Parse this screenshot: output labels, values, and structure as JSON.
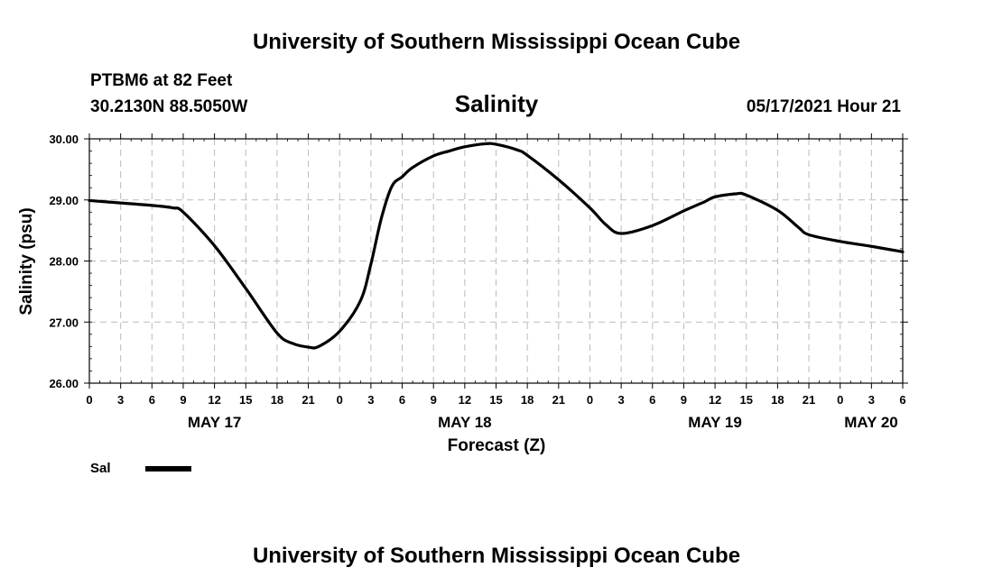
{
  "header": {
    "org_title": "University of Southern Mississippi Ocean Cube",
    "station": "PTBM6 at 82 Feet",
    "coords": "30.2130N  88.5050W",
    "timestamp": "05/17/2021 Hour 21",
    "footer_title": "University of Southern Mississippi Ocean Cube"
  },
  "colors": {
    "line": "#000000",
    "grid": "#bbbbbb"
  },
  "chart_data": {
    "type": "line",
    "title": "Salinity",
    "xlabel": "Forecast (Z)",
    "ylabel": "Salinity (psu)",
    "ylim": [
      26,
      30
    ],
    "xlim": [
      0,
      78
    ],
    "grid": true,
    "y_ticks": [
      "26.00",
      "27.00",
      "28.00",
      "29.00",
      "30.00"
    ],
    "x_ticks": [
      "0",
      "3",
      "6",
      "9",
      "12",
      "15",
      "18",
      "21",
      "0",
      "3",
      "6",
      "9",
      "12",
      "15",
      "18",
      "21",
      "0",
      "3",
      "6",
      "9",
      "12",
      "15",
      "18",
      "21",
      "0",
      "3",
      "6"
    ],
    "day_labels": [
      {
        "label": "MAY 17",
        "hour": 12
      },
      {
        "label": "MAY 18",
        "hour": 36
      },
      {
        "label": "MAY 19",
        "hour": 60
      },
      {
        "label": "MAY 20",
        "hour": 75
      }
    ],
    "series": [
      {
        "name": "Sal",
        "x": [
          0,
          3,
          6,
          8,
          9,
          12,
          15,
          18,
          19.5,
          21,
          22,
          24,
          26,
          27,
          28,
          29,
          30,
          31,
          33,
          34.5,
          36,
          38,
          39,
          41,
          42,
          45,
          48,
          49.5,
          51,
          54,
          57,
          59,
          60,
          62,
          63,
          66,
          68,
          69,
          72,
          75,
          78
        ],
        "y": [
          28.99,
          28.95,
          28.91,
          28.87,
          28.8,
          28.25,
          27.55,
          26.82,
          26.65,
          26.59,
          26.6,
          26.85,
          27.35,
          27.95,
          28.7,
          29.22,
          29.38,
          29.53,
          29.72,
          29.8,
          29.87,
          29.92,
          29.91,
          29.82,
          29.73,
          29.33,
          28.87,
          28.6,
          28.45,
          28.58,
          28.82,
          28.97,
          29.05,
          29.1,
          29.08,
          28.83,
          28.55,
          28.43,
          28.32,
          28.24,
          28.15
        ]
      }
    ],
    "legend_position": "bottom-left"
  }
}
